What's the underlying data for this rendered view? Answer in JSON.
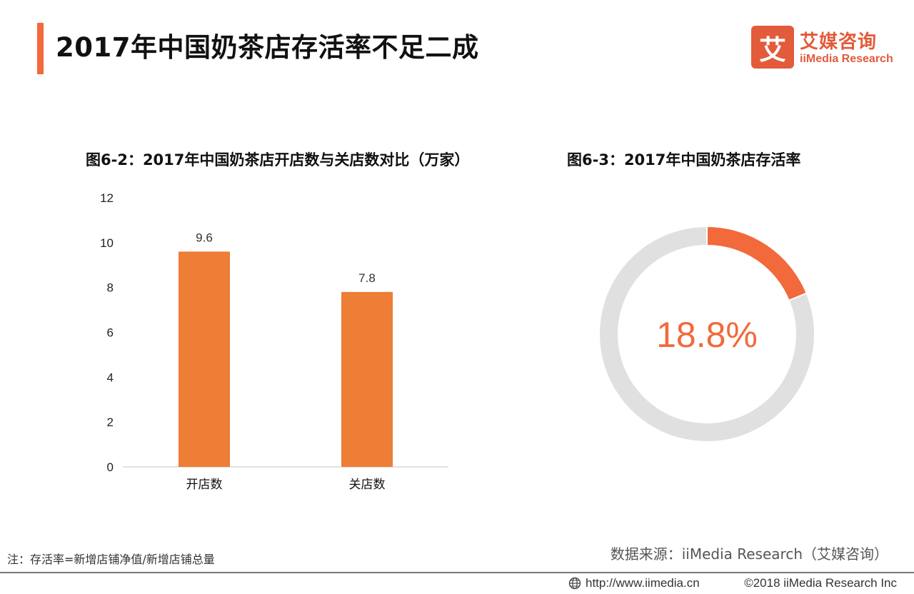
{
  "header": {
    "title": "2017年中国奶茶店存活率不足二成",
    "logo_cn": "艾媒咨询",
    "logo_en": "iiMedia Research",
    "logo_mark": "艾"
  },
  "colors": {
    "accent": "#f2693b",
    "bar": "#ee7d35",
    "donut_rest": "#e0e0e0",
    "logo": "#e25b3a"
  },
  "chart_data": [
    {
      "type": "bar",
      "title": "图6-2：2017年中国奶茶店开店数与关店数对比（万家）",
      "categories": [
        "开店数",
        "关店数"
      ],
      "values": [
        9.6,
        7.8
      ],
      "value_labels": [
        "9.6",
        "7.8"
      ],
      "yticks": [
        "0",
        "2",
        "4",
        "6",
        "8",
        "10",
        "12"
      ],
      "ylim": [
        0,
        12
      ],
      "grid": false,
      "legend": "none"
    },
    {
      "type": "pie",
      "style": "donut",
      "title": "图6-3：2017年中国奶茶店存活率",
      "values": [
        18.8,
        81.2
      ],
      "center_label": "18.8%",
      "legend": "none"
    }
  ],
  "footnote": "注：存活率=新增店铺净值/新增店铺总量",
  "source": "数据来源：iiMedia Research（艾媒咨询）",
  "footer": {
    "url": "http://www.iimedia.cn",
    "copyright": "©2018  iiMedia Research  Inc"
  }
}
